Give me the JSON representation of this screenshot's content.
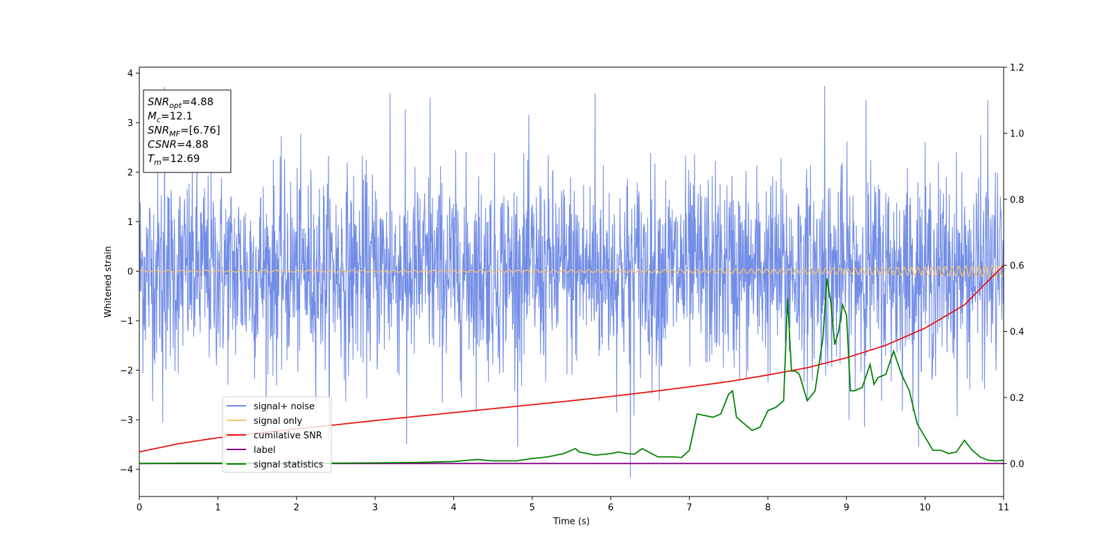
{
  "chart_data": {
    "type": "line",
    "xlabel": "Time (s)",
    "ylabel": "Whitened strain",
    "xlim": [
      0,
      11
    ],
    "ylim": [
      -4.55,
      4.12
    ],
    "y2lim": [
      -0.1,
      1.2
    ],
    "xticks": [
      "0",
      "1",
      "2",
      "3",
      "4",
      "5",
      "6",
      "7",
      "8",
      "9",
      "10",
      "11"
    ],
    "yticks": [
      "−4",
      "−3",
      "−2",
      "−1",
      "0",
      "1",
      "2",
      "3",
      "4"
    ],
    "y2ticks": [
      "0.0",
      "0.2",
      "0.4",
      "0.6",
      "0.8",
      "1.0",
      "1.2"
    ],
    "legend_position": "lower-left",
    "grid": false,
    "annotation": {
      "lines": [
        {
          "var": "SNR",
          "sub": "opt",
          "value": "=4.88"
        },
        {
          "var": "M",
          "sub": "c",
          "value": "=12.1"
        },
        {
          "var": "SNR",
          "sub": "MF",
          "value": "=[6.76]"
        },
        {
          "var": "CSNR",
          "sub": "",
          "value": "=4.88"
        },
        {
          "var": "T",
          "sub": "m",
          "value": "=12.69"
        }
      ]
    },
    "series": [
      {
        "name": "signal+ noise",
        "color": "#6b87e6",
        "axis": "left",
        "kind": "noise",
        "envelope_upper": 2.7,
        "envelope_lower": -2.2,
        "max": 3.74,
        "min": -4.17,
        "peaks": [
          [
            0.32,
            3.72
          ],
          [
            3.19,
            3.6
          ],
          [
            3.7,
            3.5
          ],
          [
            5.8,
            3.6
          ],
          [
            6.25,
            -4.17
          ],
          [
            8.72,
            3.74
          ],
          [
            9.25,
            3.45
          ],
          [
            10.8,
            3.45
          ],
          [
            3.4,
            -3.5
          ],
          [
            0.3,
            -3.05
          ]
        ]
      },
      {
        "name": "signal only",
        "color": "#f5c26b",
        "axis": "left",
        "kind": "chirp",
        "amplitude_start": 0.02,
        "amplitude_end": 0.12
      },
      {
        "name": "cumilative SNR",
        "color": "#e8130f",
        "axis": "right",
        "x": [
          0,
          0.5,
          1,
          1.5,
          2,
          2.5,
          3,
          3.5,
          4,
          4.5,
          5,
          5.5,
          6,
          6.5,
          7,
          7.5,
          8,
          8.5,
          9,
          9.5,
          10,
          10.5,
          11
        ],
        "y": [
          0.035,
          0.06,
          0.078,
          0.092,
          0.105,
          0.117,
          0.13,
          0.142,
          0.154,
          0.166,
          0.178,
          0.19,
          0.203,
          0.217,
          0.232,
          0.248,
          0.268,
          0.29,
          0.32,
          0.358,
          0.41,
          0.48,
          0.6
        ]
      },
      {
        "name": "label",
        "color": "#800080",
        "axis": "right",
        "x": [
          0,
          11
        ],
        "y": [
          0,
          0
        ]
      },
      {
        "name": "signal statistics",
        "color": "#008000",
        "axis": "right",
        "x": [
          0,
          0.5,
          1,
          1.5,
          2,
          2.5,
          3,
          3.5,
          4,
          4.2,
          4.3,
          4.5,
          4.8,
          5,
          5.2,
          5.4,
          5.5,
          5.55,
          5.6,
          5.7,
          5.8,
          6,
          6.1,
          6.2,
          6.3,
          6.4,
          6.6,
          6.8,
          6.9,
          7,
          7.1,
          7.2,
          7.3,
          7.4,
          7.5,
          7.55,
          7.6,
          7.7,
          7.8,
          7.9,
          8,
          8.1,
          8.2,
          8.25,
          8.3,
          8.35,
          8.4,
          8.5,
          8.6,
          8.7,
          8.75,
          8.8,
          8.85,
          8.9,
          8.95,
          9,
          9.05,
          9.1,
          9.2,
          9.3,
          9.35,
          9.4,
          9.5,
          9.6,
          9.7,
          9.8,
          9.9,
          10,
          10.1,
          10.2,
          10.3,
          10.4,
          10.5,
          10.6,
          10.7,
          10.8,
          10.9,
          11
        ],
        "y": [
          0,
          0.001,
          0.001,
          0.001,
          0.001,
          0.001,
          0.002,
          0.003,
          0.006,
          0.01,
          0.012,
          0.008,
          0.008,
          0.015,
          0.02,
          0.03,
          0.04,
          0.045,
          0.035,
          0.03,
          0.025,
          0.03,
          0.035,
          0.03,
          0.028,
          0.045,
          0.02,
          0.02,
          0.018,
          0.04,
          0.15,
          0.145,
          0.14,
          0.15,
          0.21,
          0.22,
          0.14,
          0.12,
          0.1,
          0.11,
          0.16,
          0.17,
          0.19,
          0.5,
          0.28,
          0.28,
          0.27,
          0.19,
          0.22,
          0.38,
          0.56,
          0.49,
          0.36,
          0.4,
          0.48,
          0.45,
          0.22,
          0.22,
          0.23,
          0.3,
          0.24,
          0.26,
          0.27,
          0.34,
          0.27,
          0.22,
          0.12,
          0.08,
          0.04,
          0.04,
          0.03,
          0.035,
          0.07,
          0.04,
          0.02,
          0.01,
          0.008,
          0.01
        ]
      }
    ]
  }
}
